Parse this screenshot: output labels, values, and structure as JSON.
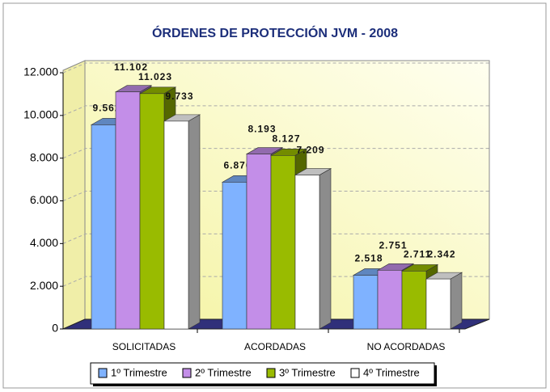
{
  "chart_data": {
    "type": "bar3d",
    "title": "ÓRDENES DE PROTECCIÓN JVM - 2008",
    "categories": [
      "SOLICITADAS",
      "ACORDADAS",
      "NO ACORDADAS"
    ],
    "series": [
      {
        "name": "1º Trimestre",
        "color": "#7fb2ff",
        "values": [
          9562,
          6876,
          2518
        ],
        "value_labels": [
          "9.562",
          "6.876",
          "2.518"
        ]
      },
      {
        "name": "2º Trimestre",
        "color": "#c38ee8",
        "values": [
          11102,
          8193,
          2751
        ],
        "value_labels": [
          "11.102",
          "8.193",
          "2.751"
        ]
      },
      {
        "name": "3º Trimestre",
        "color": "#99bb00",
        "values": [
          11023,
          8127,
          2711
        ],
        "value_labels": [
          "11.023",
          "8.127",
          "2.711"
        ]
      },
      {
        "name": "4º Trimestre",
        "color": "#ffffff",
        "values": [
          9733,
          7209,
          2342
        ],
        "value_labels": [
          "9.733",
          "7.209",
          "2.342"
        ]
      }
    ],
    "ylim": [
      0,
      12000
    ],
    "yticks": [
      0,
      {
        "value": 2000,
        "label": "2.000"
      },
      {
        "value": 4000,
        "label": "4.000"
      },
      {
        "value": 6000,
        "label": "6.000"
      },
      {
        "value": 8000,
        "label": "8.000"
      },
      {
        "value": 10000,
        "label": "10.000"
      },
      {
        "value": 12000,
        "label": "12.000"
      }
    ],
    "grid": true,
    "legend": "bottom"
  }
}
